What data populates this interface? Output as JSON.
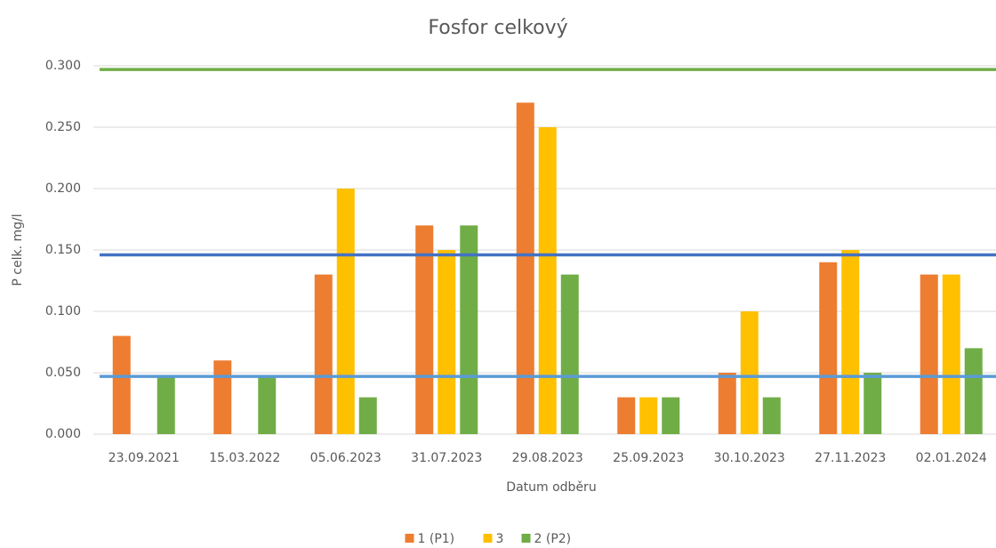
{
  "chart_data": {
    "type": "bar",
    "title": "Fosfor celkový",
    "x_label": "Datum odběru",
    "y_label": "P celk. mg/l",
    "categories": [
      "23.09.2021",
      "15.03.2022",
      "05.06.2023",
      "31.07.2023",
      "29.08.2023",
      "25.09.2023",
      "30.10.2023",
      "27.11.2023",
      "02.01.2024"
    ],
    "series": [
      {
        "name": "1 (P1)",
        "color": "#ed7d31",
        "values": [
          0.08,
          0.06,
          0.13,
          0.17,
          0.27,
          0.03,
          0.05,
          0.14,
          0.13
        ]
      },
      {
        "name": "3",
        "color": "#ffc000",
        "values": [
          null,
          null,
          0.2,
          0.15,
          0.25,
          0.03,
          0.1,
          0.15,
          0.13
        ]
      },
      {
        "name": "2 (P2)",
        "color": "#70ad47",
        "values": [
          0.048,
          0.048,
          0.03,
          0.17,
          0.13,
          0.03,
          0.03,
          0.05,
          0.07
        ]
      }
    ],
    "reference_lines": [
      {
        "value": 0.297,
        "color": "#70ad47"
      },
      {
        "value": 0.146,
        "color": "#4472c4"
      },
      {
        "value": 0.047,
        "color": "#5b9bd5"
      }
    ],
    "ylim": [
      0,
      0.3
    ],
    "yticks": [
      {
        "value": 0,
        "label": "0.000"
      },
      {
        "value": 0.05,
        "label": "0.050"
      },
      {
        "value": 0.1,
        "label": "0.100"
      },
      {
        "value": 0.15,
        "label": "0.150"
      },
      {
        "value": 0.2,
        "label": "0.200"
      },
      {
        "value": 0.25,
        "label": "0.250"
      },
      {
        "value": 0.3,
        "label": "0.300"
      }
    ],
    "grid": true,
    "legend": "bottom"
  }
}
